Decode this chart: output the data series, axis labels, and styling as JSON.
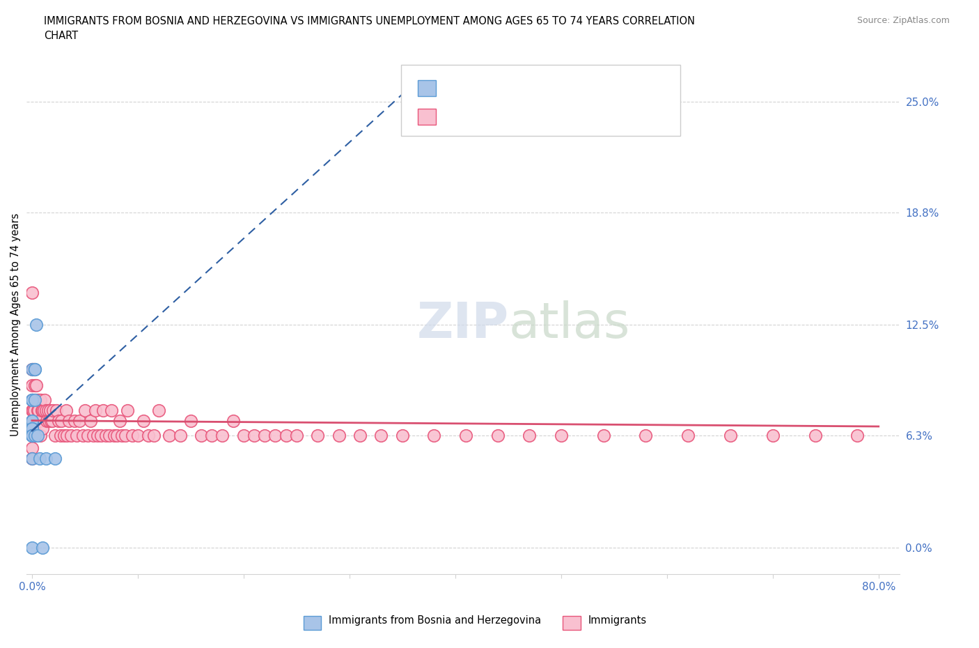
{
  "title": "IMMIGRANTS FROM BOSNIA AND HERZEGOVINA VS IMMIGRANTS UNEMPLOYMENT AMONG AGES 65 TO 74 YEARS CORRELATION\nCHART",
  "source": "Source: ZipAtlas.com",
  "ylabel": "Unemployment Among Ages 65 to 74 years",
  "yticks": [
    "0.0%",
    "6.3%",
    "12.5%",
    "18.8%",
    "25.0%"
  ],
  "ytick_values": [
    0.0,
    6.3,
    12.5,
    18.8,
    25.0
  ],
  "legend_bottom1": "Immigrants from Bosnia and Herzegovina",
  "legend_bottom2": "Immigrants",
  "color_bosnia_fill": "#a8c4e8",
  "color_bosnia_edge": "#5b9bd5",
  "color_immigrants_fill": "#f9c0d0",
  "color_immigrants_edge": "#e8557a",
  "color_line_bosnia": "#2e5fa3",
  "color_line_immigrants": "#d94f70",
  "color_blue_text": "#4472C4",
  "bosnia_x": [
    0.0,
    0.0,
    0.0,
    0.0,
    0.0,
    0.0,
    0.0,
    0.0,
    0.0,
    0.0,
    0.0,
    0.0,
    0.0,
    0.0,
    0.0,
    0.3,
    0.3,
    0.3,
    0.3,
    0.4,
    0.5,
    0.7,
    1.0,
    1.3,
    2.2
  ],
  "bosnia_y": [
    0.0,
    8.3,
    8.3,
    10.0,
    8.3,
    7.1,
    7.1,
    6.7,
    6.7,
    6.7,
    6.3,
    6.3,
    6.3,
    6.3,
    5.0,
    6.3,
    8.3,
    10.0,
    10.0,
    12.5,
    6.3,
    5.0,
    0.0,
    5.0,
    5.0
  ],
  "immigrants_x": [
    0.0,
    0.0,
    0.0,
    0.0,
    0.0,
    0.0,
    0.0,
    0.0,
    0.0,
    0.0,
    0.1,
    0.1,
    0.1,
    0.1,
    0.2,
    0.2,
    0.2,
    0.2,
    0.3,
    0.3,
    0.3,
    0.3,
    0.4,
    0.4,
    0.4,
    0.5,
    0.5,
    0.5,
    0.6,
    0.6,
    0.7,
    0.7,
    0.8,
    0.8,
    0.9,
    1.0,
    1.0,
    1.1,
    1.2,
    1.3,
    1.4,
    1.5,
    1.6,
    1.7,
    1.8,
    1.9,
    2.0,
    2.2,
    2.3,
    2.5,
    2.7,
    2.8,
    3.0,
    3.2,
    3.3,
    3.5,
    3.7,
    4.0,
    4.2,
    4.5,
    4.8,
    5.0,
    5.3,
    5.5,
    5.8,
    6.0,
    6.2,
    6.5,
    6.7,
    7.0,
    7.3,
    7.5,
    7.8,
    8.0,
    8.3,
    8.5,
    8.8,
    9.0,
    9.5,
    10.0,
    10.5,
    11.0,
    11.5,
    12.0,
    13.0,
    14.0,
    15.0,
    16.0,
    17.0,
    18.0,
    19.0,
    20.0,
    21.0,
    22.0,
    23.0,
    24.0,
    25.0,
    27.0,
    29.0,
    31.0,
    33.0,
    35.0,
    38.0,
    41.0,
    44.0,
    47.0,
    50.0,
    54.0,
    58.0,
    62.0,
    66.0,
    70.0,
    74.0,
    78.0
  ],
  "immigrants_y": [
    14.3,
    10.0,
    9.1,
    8.3,
    7.7,
    7.1,
    6.7,
    6.3,
    5.6,
    5.0,
    10.0,
    8.3,
    7.7,
    6.7,
    10.0,
    8.3,
    7.7,
    6.7,
    9.1,
    8.3,
    7.1,
    6.3,
    9.1,
    8.3,
    7.1,
    8.3,
    7.7,
    6.3,
    8.3,
    7.7,
    8.3,
    7.1,
    8.3,
    6.3,
    7.7,
    7.7,
    6.7,
    7.7,
    8.3,
    7.7,
    7.1,
    7.7,
    7.1,
    7.7,
    7.1,
    7.1,
    7.7,
    6.3,
    7.7,
    7.1,
    6.3,
    7.1,
    6.3,
    7.7,
    6.3,
    7.1,
    6.3,
    7.1,
    6.3,
    7.1,
    6.3,
    7.7,
    6.3,
    7.1,
    6.3,
    7.7,
    6.3,
    6.3,
    7.7,
    6.3,
    6.3,
    7.7,
    6.3,
    6.3,
    7.1,
    6.3,
    6.3,
    7.7,
    6.3,
    6.3,
    7.1,
    6.3,
    6.3,
    7.7,
    6.3,
    6.3,
    7.1,
    6.3,
    6.3,
    6.3,
    7.1,
    6.3,
    6.3,
    6.3,
    6.3,
    6.3,
    6.3,
    6.3,
    6.3,
    6.3,
    6.3,
    6.3,
    6.3,
    6.3,
    6.3,
    6.3,
    6.3,
    6.3,
    6.3,
    6.3,
    6.3,
    6.3,
    6.3,
    6.3
  ]
}
